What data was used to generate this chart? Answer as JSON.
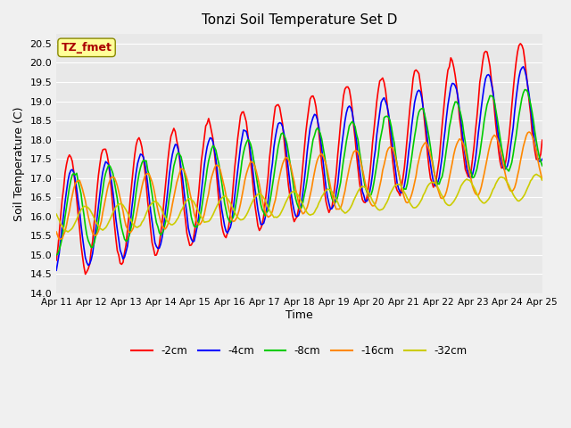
{
  "title": "Tonzi Soil Temperature Set D",
  "xlabel": "Time",
  "ylabel": "Soil Temperature (C)",
  "ylim": [
    14.0,
    20.75
  ],
  "yticks": [
    14.0,
    14.5,
    15.0,
    15.5,
    16.0,
    16.5,
    17.0,
    17.5,
    18.0,
    18.5,
    19.0,
    19.5,
    20.0,
    20.5
  ],
  "xtick_positions": [
    0,
    1,
    2,
    3,
    4,
    5,
    6,
    7,
    8,
    9,
    10,
    11,
    12,
    13,
    14
  ],
  "xtick_labels": [
    "Apr 11",
    "Apr 12",
    "Apr 13",
    "Apr 14",
    "Apr 15",
    "Apr 16",
    "Apr 17",
    "Apr 18",
    "Apr 19",
    "Apr 20",
    "Apr 21",
    "Apr 22",
    "Apr 23",
    "Apr 24",
    "Apr 25"
  ],
  "series_colors": [
    "#ff0000",
    "#0000ff",
    "#00cc00",
    "#ff8800",
    "#cccc00"
  ],
  "series_labels": [
    "-2cm",
    "-4cm",
    "-8cm",
    "-16cm",
    "-32cm"
  ],
  "legend_label": "TZ_fmet",
  "bg_color": "#e8e8e8",
  "grid_color": "#ffffff",
  "annotation_bg": "#ffff99",
  "annotation_border": "#888800",
  "annotation_text_color": "#aa0000",
  "n_days": 14,
  "n_per_day": 24
}
